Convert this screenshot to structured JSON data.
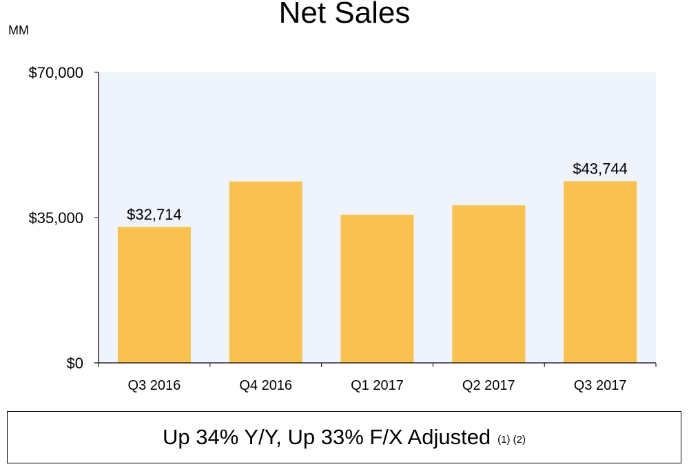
{
  "title": "Net Sales",
  "unit_label": "MM",
  "summary": {
    "text": "Up 34% Y/Y, Up 33% F/X Adjusted",
    "footnotes": "(1) (2)"
  },
  "colors": {
    "bar": "#F8C150",
    "plot_background": "#EEF3FC",
    "axis": "#000000"
  },
  "chart_data": {
    "type": "bar",
    "title": "Net Sales",
    "xlabel": "",
    "ylabel": "MM",
    "categories": [
      "Q3 2016",
      "Q4 2016",
      "Q1 2017",
      "Q2 2017",
      "Q3 2017"
    ],
    "values": [
      32714,
      43700,
      35700,
      37955,
      43744
    ],
    "data_labels": [
      "$32,714",
      "",
      "",
      "",
      "$43,744"
    ],
    "ylim": [
      0,
      70000
    ],
    "yticks": [
      0,
      35000,
      70000
    ],
    "ytick_labels": [
      "$0",
      "$35,000",
      "$70,000"
    ],
    "grid": false,
    "legend": "none"
  }
}
